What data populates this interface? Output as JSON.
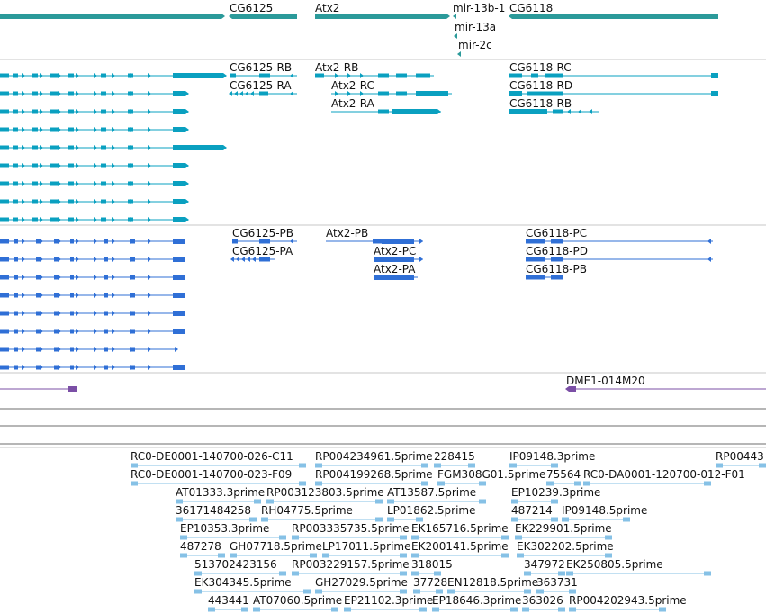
{
  "colors": {
    "gene_top": "#2b9a9a",
    "transcript_fly": "#0aa0c0",
    "transcript_ref": "#2f6fd6",
    "clone": "#7b4fa6",
    "est": "#86c1e6",
    "divider": "#c7c7c7",
    "divider_dark": "#6e6e6e",
    "label": "#111111"
  },
  "tracks": {
    "genes": {
      "labels": [
        "CG6125",
        "Atx2",
        "mir-13b-1",
        "CG6118",
        "mir-13a",
        "mir-2c"
      ]
    },
    "fly_transcripts": {
      "labels": [
        "CG6125-RB",
        "Atx2-RB",
        "CG6118-RC",
        "CG6125-RA",
        "Atx2-RC",
        "CG6118-RD",
        "Atx2-RA",
        "CG6118-RB"
      ]
    },
    "ref_transcripts": {
      "labels": [
        "CG6125-PB",
        "Atx2-PB",
        "CG6118-PC",
        "CG6125-PA",
        "Atx2-PC",
        "CG6118-PD",
        "Atx2-PA",
        "CG6118-PB"
      ]
    },
    "clones": {
      "labels": [
        "DME1-014M20"
      ]
    },
    "ests": {
      "labels": [
        "RC0-DE0001-140700-026-C11",
        "RP004234961.5prime",
        "228415",
        "IP09148.3prime",
        "RP00443",
        "RC0-DE0001-140700-023-F09",
        "RP004199268.5prime",
        "FGM308G01.5prime",
        "75564",
        "RC0-DA0001-120700-012-F01",
        "AT01333.3prime",
        "RP003123803.5prime",
        "AT13587.5prime",
        "EP10239.3prime",
        "36171484258",
        "RH04775.5prime",
        "LP01862.5prime",
        "487214",
        "IP09148.5prime",
        "EP10353.3prime",
        "RP003335735.5prime",
        "EK165716.5prime",
        "EK229901.5prime",
        "487278",
        "GH07718.5prime",
        "LP17011.5prime",
        "EK200141.5prime",
        "EK302202.5prime",
        "513702423156",
        "RP003229157.5prime",
        "318015",
        "347972",
        "EK250805.5prime",
        "EK304345.5prime",
        "GH27029.5prime",
        "37728",
        "EN12818.5prime",
        "363731",
        "443441",
        "AT07060.5prime",
        "EP21102.3prime",
        "EP18646.3prime",
        "363026",
        "RP004202943.5prime"
      ]
    }
  }
}
